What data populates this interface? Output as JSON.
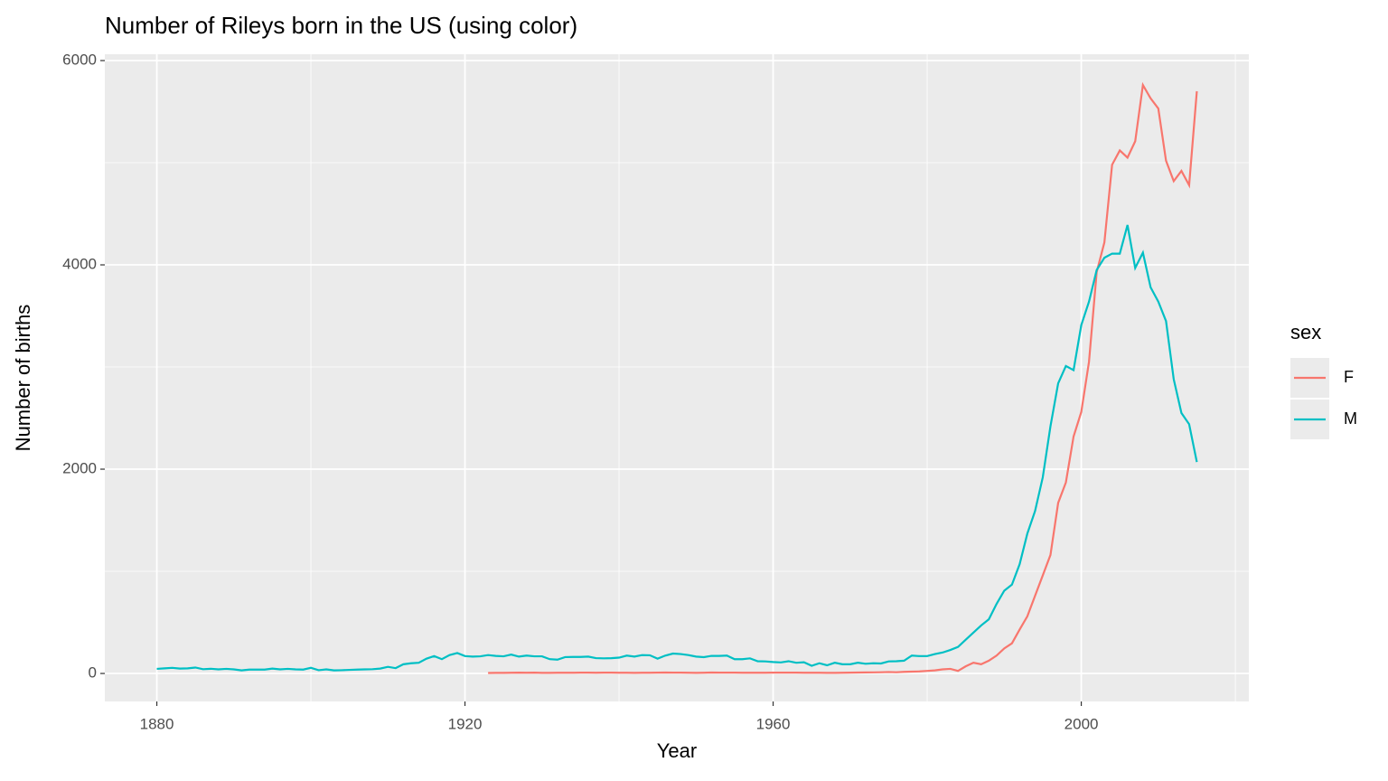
{
  "chart_data": {
    "type": "line",
    "title": "Number of Rileys born in the US (using color)",
    "x_label": "Year",
    "y_label": "Number of births",
    "legend_title": "sex",
    "legend_position": "right",
    "grid": true,
    "x": [
      1880,
      1881,
      1882,
      1883,
      1884,
      1885,
      1886,
      1887,
      1888,
      1889,
      1890,
      1891,
      1892,
      1893,
      1894,
      1895,
      1896,
      1897,
      1898,
      1899,
      1900,
      1901,
      1902,
      1903,
      1904,
      1905,
      1906,
      1907,
      1908,
      1909,
      1910,
      1911,
      1912,
      1913,
      1914,
      1915,
      1916,
      1917,
      1918,
      1919,
      1920,
      1921,
      1922,
      1923,
      1924,
      1925,
      1926,
      1927,
      1928,
      1929,
      1930,
      1931,
      1932,
      1933,
      1934,
      1935,
      1936,
      1937,
      1938,
      1939,
      1940,
      1941,
      1942,
      1943,
      1944,
      1945,
      1946,
      1947,
      1948,
      1949,
      1950,
      1951,
      1952,
      1953,
      1954,
      1955,
      1956,
      1957,
      1958,
      1959,
      1960,
      1961,
      1962,
      1963,
      1964,
      1965,
      1966,
      1967,
      1968,
      1969,
      1970,
      1971,
      1972,
      1973,
      1974,
      1975,
      1976,
      1977,
      1978,
      1979,
      1980,
      1981,
      1982,
      1983,
      1984,
      1985,
      1986,
      1987,
      1988,
      1989,
      1990,
      1991,
      1992,
      1993,
      1994,
      1995,
      1996,
      1997,
      1998,
      1999,
      2000,
      2001,
      2002,
      2003,
      2004,
      2005,
      2006,
      2007,
      2008,
      2009,
      2010,
      2011,
      2012,
      2013,
      2014,
      2015
    ],
    "series": [
      {
        "name": "F",
        "color": "#F8766D",
        "values": [
          null,
          null,
          null,
          null,
          null,
          null,
          null,
          null,
          null,
          null,
          null,
          null,
          null,
          null,
          null,
          null,
          null,
          null,
          null,
          null,
          null,
          null,
          null,
          null,
          null,
          null,
          null,
          null,
          null,
          null,
          null,
          null,
          null,
          null,
          null,
          null,
          null,
          null,
          null,
          null,
          null,
          null,
          null,
          5,
          6,
          6,
          7,
          8,
          7,
          8,
          6,
          6,
          7,
          7,
          7,
          8,
          8,
          7,
          8,
          8,
          7,
          7,
          6,
          7,
          7,
          8,
          9,
          8,
          8,
          7,
          6,
          7,
          9,
          8,
          8,
          8,
          7,
          7,
          7,
          7,
          8,
          8,
          8,
          8,
          7,
          7,
          7,
          6,
          6,
          7,
          8,
          9,
          10,
          11,
          12,
          14,
          12,
          16,
          18,
          20,
          25,
          30,
          40,
          45,
          25,
          70,
          105,
          90,
          125,
          175,
          245,
          295,
          430,
          560,
          760,
          960,
          1160,
          1670,
          1870,
          2320,
          2560,
          3050,
          3930,
          4220,
          4980,
          5120,
          5050,
          5210,
          5760,
          5630,
          5530,
          5020,
          4820,
          4920,
          4780,
          5700
        ]
      },
      {
        "name": "M",
        "color": "#00BFC4",
        "values": [
          45,
          50,
          55,
          48,
          50,
          58,
          42,
          46,
          40,
          45,
          40,
          30,
          38,
          38,
          38,
          48,
          40,
          45,
          40,
          38,
          55,
          32,
          40,
          30,
          32,
          35,
          38,
          40,
          42,
          48,
          65,
          52,
          90,
          100,
          105,
          145,
          170,
          140,
          180,
          200,
          170,
          165,
          168,
          180,
          172,
          168,
          185,
          165,
          175,
          168,
          168,
          140,
          135,
          160,
          162,
          162,
          165,
          150,
          148,
          150,
          155,
          175,
          165,
          180,
          178,
          145,
          175,
          195,
          190,
          180,
          165,
          160,
          172,
          172,
          175,
          140,
          140,
          148,
          120,
          118,
          112,
          108,
          120,
          105,
          110,
          75,
          100,
          80,
          105,
          90,
          90,
          105,
          95,
          100,
          98,
          118,
          120,
          125,
          175,
          170,
          170,
          190,
          205,
          230,
          260,
          330,
          400,
          470,
          530,
          680,
          810,
          870,
          1070,
          1370,
          1590,
          1920,
          2420,
          2840,
          3010,
          2970,
          3410,
          3640,
          3950,
          4070,
          4110,
          4110,
          4390,
          3970,
          4120,
          3780,
          3640,
          3450,
          2880,
          2550,
          2440,
          2070
        ]
      }
    ],
    "xlim": [
      1873.25,
      2021.75
    ],
    "xticks": [
      1880,
      1920,
      1960,
      2000
    ],
    "x_minor_ticks": [
      1900,
      1940,
      1980,
      2020
    ],
    "ylim": [
      -274,
      6062
    ],
    "yticks": [
      0,
      2000,
      4000,
      6000
    ],
    "y_minor_ticks": [
      1000,
      3000,
      5000
    ]
  }
}
